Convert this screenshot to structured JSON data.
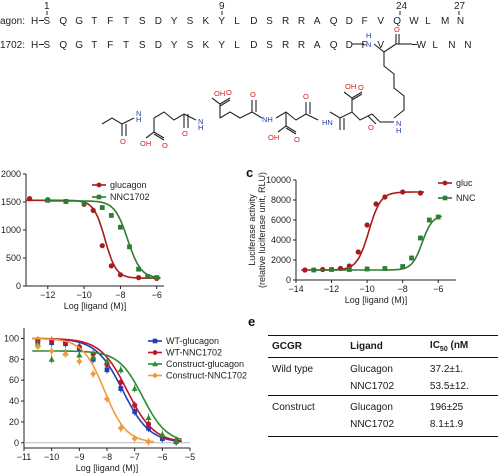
{
  "panel_a": {
    "position_numbers": [
      "1",
      "9",
      "24",
      "27"
    ],
    "row1": {
      "label": "agon:",
      "n_term": "H",
      "sequence": [
        "S",
        "Q",
        "G",
        "T",
        "F",
        "T",
        "S",
        "D",
        "Y",
        "S",
        "K",
        "Y",
        "L",
        "D",
        "S",
        "R",
        "R",
        "A",
        "Q",
        "D",
        "F",
        "V",
        "Q",
        "W",
        "L",
        "M",
        "N"
      ]
    },
    "row2": {
      "label": "1702:",
      "n_term": "H",
      "sequence_before": [
        "S",
        "Q",
        "G",
        "T",
        "F",
        "T",
        "S",
        "D",
        "Y",
        "S",
        "K",
        "Y",
        "L",
        "D",
        "S",
        "R",
        "R",
        "A",
        "Q",
        "D",
        "F",
        "V"
      ],
      "sequence_after": [
        "W",
        "L",
        "N",
        "N"
      ]
    },
    "atom_labels": {
      "O": "O",
      "OH": "OH",
      "N": "N",
      "H": "H",
      "HN": "HN",
      "NH": "NH"
    }
  },
  "panel_b": {
    "letter": "",
    "y_tick_top": "2000"
  },
  "panel_c": {
    "letter": "c"
  },
  "panel_d": {
    "letter": ""
  },
  "panel_e": {
    "letter": "e",
    "headers": [
      "GCGR",
      "Ligand",
      "IC50 (nM"
    ],
    "header_ic": "IC",
    "header_sub": "50",
    "header_unit": " (nM",
    "rows": [
      {
        "group": "Wild type",
        "ligand": "Glucagon",
        "ic50": "37.2±1."
      },
      {
        "group": "",
        "ligand": "NNC1702",
        "ic50": "53.5±12."
      },
      {
        "group": "Construct",
        "ligand": "Glucagon",
        "ic50": "196±25"
      },
      {
        "group": "",
        "ligand": "NNC1702",
        "ic50": "8.1±1.9"
      }
    ]
  },
  "colors": {
    "glucagon": "#a51c1c",
    "nnc1702": "#2e7d32",
    "wt_glucagon": "#1f3fb5",
    "wt_nnc1702": "#c0152b",
    "construct_glucagon": "#2e8b2e",
    "construct_nnc1702": "#f39a3b",
    "heteroatom_O": "#d81e1e",
    "heteroatom_N": "#1f3fb5"
  },
  "chart_data": [
    {
      "type": "line",
      "panel": "b",
      "xlabel": "Log [ligand (M)]",
      "ylabel": "",
      "xlim": [
        -13.2,
        -5.6
      ],
      "ylim": [
        0,
        2000
      ],
      "x_ticks": [
        -12,
        -10,
        -8,
        -6
      ],
      "y_ticks": [
        0,
        500,
        1000,
        1500,
        2000
      ],
      "y_tick_labels": [
        "0",
        "500",
        "1000",
        "1500",
        "2000"
      ],
      "legend": "top-right",
      "series": [
        {
          "name": "glucagon",
          "color": "#a51c1c",
          "marker": "circle",
          "top": 1530,
          "bottom": 140,
          "logEC50": -8.85,
          "hill": 1.4,
          "x": [
            -13,
            -12,
            -11,
            -10,
            -9.5,
            -9,
            -8.5,
            -8,
            -7,
            -6
          ],
          "y": [
            1560,
            1540,
            1510,
            1460,
            1350,
            720,
            360,
            200,
            150,
            135
          ]
        },
        {
          "name": "NNC1702",
          "color": "#2e7d32",
          "marker": "square",
          "top": 1520,
          "bottom": 140,
          "logEC50": -7.6,
          "hill": 1.2,
          "x": [
            -12,
            -11,
            -10,
            -9,
            -8.5,
            -8,
            -7.5,
            -7,
            -6.5,
            -6
          ],
          "y": [
            1530,
            1510,
            1480,
            1400,
            1260,
            1050,
            700,
            300,
            170,
            150
          ]
        }
      ]
    },
    {
      "type": "line",
      "panel": "c",
      "xlabel": "Log [ligand (M)]",
      "ylabel": "Luciferase activity\n(relative luciferase unit, RLU)",
      "ylabel_line1": "Luciferase activity",
      "ylabel_line2": "(relative luciferase unit, RLU)",
      "xlim": [
        -14,
        -5
      ],
      "ylim": [
        0,
        10000
      ],
      "x_ticks": [
        -14,
        -12,
        -10,
        -8,
        -6
      ],
      "y_ticks": [
        0,
        2000,
        4000,
        6000,
        8000,
        10000
      ],
      "y_tick_labels": [
        "0",
        "2000",
        "4000",
        "6000",
        "8000",
        "10000"
      ],
      "legend": "top-right",
      "legend_labels": [
        "gluc",
        "NNC"
      ],
      "series": [
        {
          "name": "gluc",
          "color": "#a51c1c",
          "marker": "circle",
          "top": 8800,
          "bottom": 1000,
          "logEC50": -9.9,
          "hill": 1.3,
          "x": [
            -13.5,
            -12.5,
            -11.5,
            -11,
            -10.5,
            -10,
            -9.5,
            -9,
            -8,
            -7
          ],
          "y": [
            1000,
            1050,
            1150,
            1400,
            2800,
            5500,
            7600,
            8300,
            8800,
            8700
          ]
        },
        {
          "name": "NNC",
          "color": "#2e7d32",
          "marker": "square",
          "top": 6500,
          "bottom": 1000,
          "logEC50": -6.9,
          "hill": 1.5,
          "x": [
            -13,
            -12,
            -11,
            -10,
            -9,
            -8,
            -7.5,
            -7,
            -6.5,
            -6
          ],
          "y": [
            1000,
            1050,
            1050,
            1100,
            1150,
            1350,
            2200,
            4200,
            6000,
            6300
          ]
        }
      ]
    },
    {
      "type": "line",
      "panel": "d",
      "xlabel": "Log [ligand (M)]",
      "ylabel": "",
      "xlim": [
        -11,
        -5
      ],
      "ylim": [
        -5,
        110
      ],
      "x_ticks": [
        -11,
        -10,
        -9,
        -8,
        -7,
        -6,
        -5
      ],
      "y_ticks": [
        0,
        20,
        40,
        60,
        80,
        100
      ],
      "y_tick_labels": [
        "0",
        "20",
        "40",
        "60",
        "80",
        "100"
      ],
      "legend": "top-right",
      "series": [
        {
          "name": "WT-glucagon",
          "color": "#1f3fb5",
          "marker": "square",
          "top": 100,
          "bottom": 0,
          "logEC50": -7.43,
          "hill": 0.9,
          "x": [
            -10.5,
            -10,
            -9.5,
            -9,
            -8.5,
            -8,
            -7.5,
            -7,
            -6.5,
            -6,
            -5.5
          ],
          "y": [
            97,
            96,
            95,
            90,
            80,
            70,
            52,
            30,
            14,
            4,
            1
          ]
        },
        {
          "name": "WT-NNC1702",
          "color": "#c0152b",
          "marker": "circle",
          "top": 100,
          "bottom": 0,
          "logEC50": -7.27,
          "hill": 0.9,
          "x": [
            -10.5,
            -10,
            -9.5,
            -9,
            -8.5,
            -8,
            -7.5,
            -7,
            -6.5,
            -6,
            -5.5
          ],
          "y": [
            98,
            98,
            96,
            92,
            85,
            75,
            58,
            36,
            18,
            6,
            2
          ]
        },
        {
          "name": "Construct-glucagon",
          "color": "#2e8b2e",
          "marker": "triangle",
          "top": 88,
          "bottom": 0,
          "logEC50": -6.71,
          "hill": 1.0,
          "x": [
            -10.5,
            -10,
            -9.5,
            -9,
            -8.5,
            -8,
            -7.5,
            -7,
            -6.5,
            -6,
            -5.5
          ],
          "y": [
            95,
            80,
            86,
            84,
            82,
            78,
            70,
            52,
            24,
            8,
            2
          ]
        },
        {
          "name": "Construct-NNC1702",
          "color": "#f39a3b",
          "marker": "diamond",
          "top": 100,
          "bottom": 0,
          "logEC50": -8.09,
          "hill": 1.1,
          "x": [
            -10.5,
            -10,
            -9.5,
            -9,
            -8.5,
            -8,
            -7.5,
            -7,
            -6.5
          ],
          "y": [
            92,
            88,
            85,
            78,
            66,
            42,
            14,
            4,
            1
          ]
        }
      ]
    }
  ]
}
